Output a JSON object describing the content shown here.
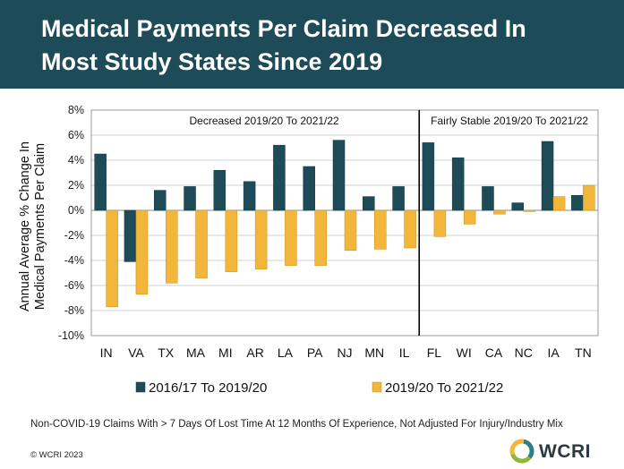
{
  "title_line1": "Medical Payments Per Claim Decreased In",
  "title_line2": "Most Study States Since 2019",
  "chart_data": {
    "type": "bar",
    "ylabel_line1": "Annual Average % Change In",
    "ylabel_line2": "Medical Payments Per Claim",
    "ylim": [
      -10,
      8
    ],
    "yticks": [
      -10,
      -8,
      -6,
      -4,
      -2,
      0,
      2,
      4,
      6,
      8
    ],
    "ytick_labels": [
      "-10%",
      "-8%",
      "-6%",
      "-4%",
      "-2%",
      "0%",
      "2%",
      "4%",
      "6%",
      "8%"
    ],
    "categories": [
      "IN",
      "VA",
      "TX",
      "MA",
      "MI",
      "AR",
      "LA",
      "PA",
      "NJ",
      "MN",
      "IL",
      "FL",
      "WI",
      "CA",
      "NC",
      "IA",
      "TN"
    ],
    "series": [
      {
        "name": "2016/17 To 2019/20",
        "color": "#1d4b57",
        "values": [
          4.5,
          -4.1,
          1.6,
          1.9,
          3.2,
          2.3,
          5.2,
          3.5,
          5.6,
          1.1,
          1.9,
          5.4,
          4.2,
          1.9,
          0.6,
          5.5,
          1.2
        ]
      },
      {
        "name": "2019/20 To 2021/22",
        "color": "#f2b63a",
        "values": [
          -7.7,
          -6.7,
          -5.8,
          -5.4,
          -4.9,
          -4.7,
          -4.4,
          -4.4,
          -3.2,
          -3.1,
          -3.0,
          -2.1,
          -1.1,
          -0.3,
          -0.1,
          1.1,
          2.0
        ]
      }
    ],
    "annotations": [
      "Decreased 2019/20 To 2021/22",
      "Fairly Stable 2019/20 To 2021/22"
    ],
    "divider_after_category": "IL",
    "legend_position": "bottom"
  },
  "footnote": "Non-COVID-19 Claims With > 7 Days Of Lost Time At 12 Months Of Experience, Not Adjusted For Injury/Industry Mix",
  "copyright": "© WCRI 2023",
  "logo_text": "WCRI",
  "logo_colors": [
    "#2e7f8a",
    "#8cb63c",
    "#f2b63a"
  ]
}
